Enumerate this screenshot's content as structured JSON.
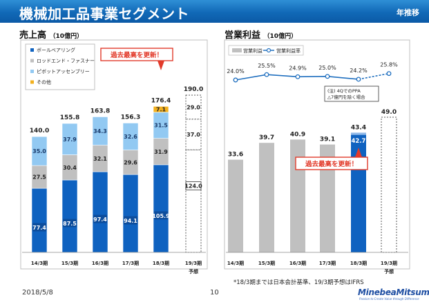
{
  "header": {
    "title": "機械加工品事業セグメント",
    "subtitle": "年推移"
  },
  "sales": {
    "title": "売上高",
    "unit": "（10億円）",
    "legend": [
      {
        "name": "ボールベアリング",
        "color": "#0f62c0"
      },
      {
        "name": "ロッドエンド・ファスナー",
        "color": "#c0c0c0"
      },
      {
        "name": "ピボットアッセンブリー",
        "color": "#92c9f2"
      },
      {
        "name": "その他",
        "color": "#f2b01e"
      }
    ],
    "callout": "過去最高を更新！"
  },
  "profit": {
    "title": "営業利益",
    "unit": "（10億円）",
    "legend": [
      {
        "name": "営業利益",
        "color": "#c0c0c0"
      },
      {
        "name": "営業利益率",
        "color": "#1f6fbf"
      }
    ],
    "note_line1": "(注) 4QでのPPA",
    "note_line2": "△7億円を除く場合",
    "callout": "過去最高を更新！"
  },
  "chart_data": [
    {
      "type": "bar",
      "title": "売上高",
      "categories": [
        "14/3期",
        "15/3期",
        "16/3期",
        "17/3期",
        "18/3期",
        "19/3期"
      ],
      "forecast_label": "予想",
      "totals": [
        140.0,
        155.8,
        163.8,
        156.3,
        176.4,
        190.0
      ],
      "series": [
        {
          "name": "ボールベアリング",
          "values": [
            77.4,
            87.5,
            97.4,
            94.1,
            105.9,
            124.0
          ]
        },
        {
          "name": "ロッドエンド・ファスナー",
          "values": [
            27.5,
            30.4,
            32.1,
            29.6,
            31.9,
            37.0
          ]
        },
        {
          "name": "ピボットアッセンブリー",
          "values": [
            35.0,
            37.9,
            34.3,
            32.6,
            31.5,
            29.0
          ]
        },
        {
          "name": "その他",
          "values": [
            null,
            null,
            null,
            null,
            7.1,
            null
          ]
        }
      ]
    },
    {
      "type": "bar",
      "title": "営業利益",
      "categories": [
        "14/3期",
        "15/3期",
        "16/3期",
        "17/3期",
        "18/3期",
        "19/3期"
      ],
      "forecast_label": "予想",
      "series": [
        {
          "name": "営業利益",
          "values": [
            33.6,
            39.7,
            40.9,
            39.1,
            43.4,
            49.0
          ]
        },
        {
          "name": "営業利益率",
          "values": [
            24.0,
            25.5,
            24.9,
            25.0,
            24.2,
            25.8
          ]
        }
      ],
      "ppa_excluded_value": 42.7
    }
  ],
  "footer": {
    "date": "2018/5/8",
    "page": "10",
    "footnote": "*18/3期までは日本会計基準、19/3期予想はIFRS",
    "logo": "MinebeaMitsumi",
    "logo_tagline": "Passion to Create Value through Difference"
  }
}
